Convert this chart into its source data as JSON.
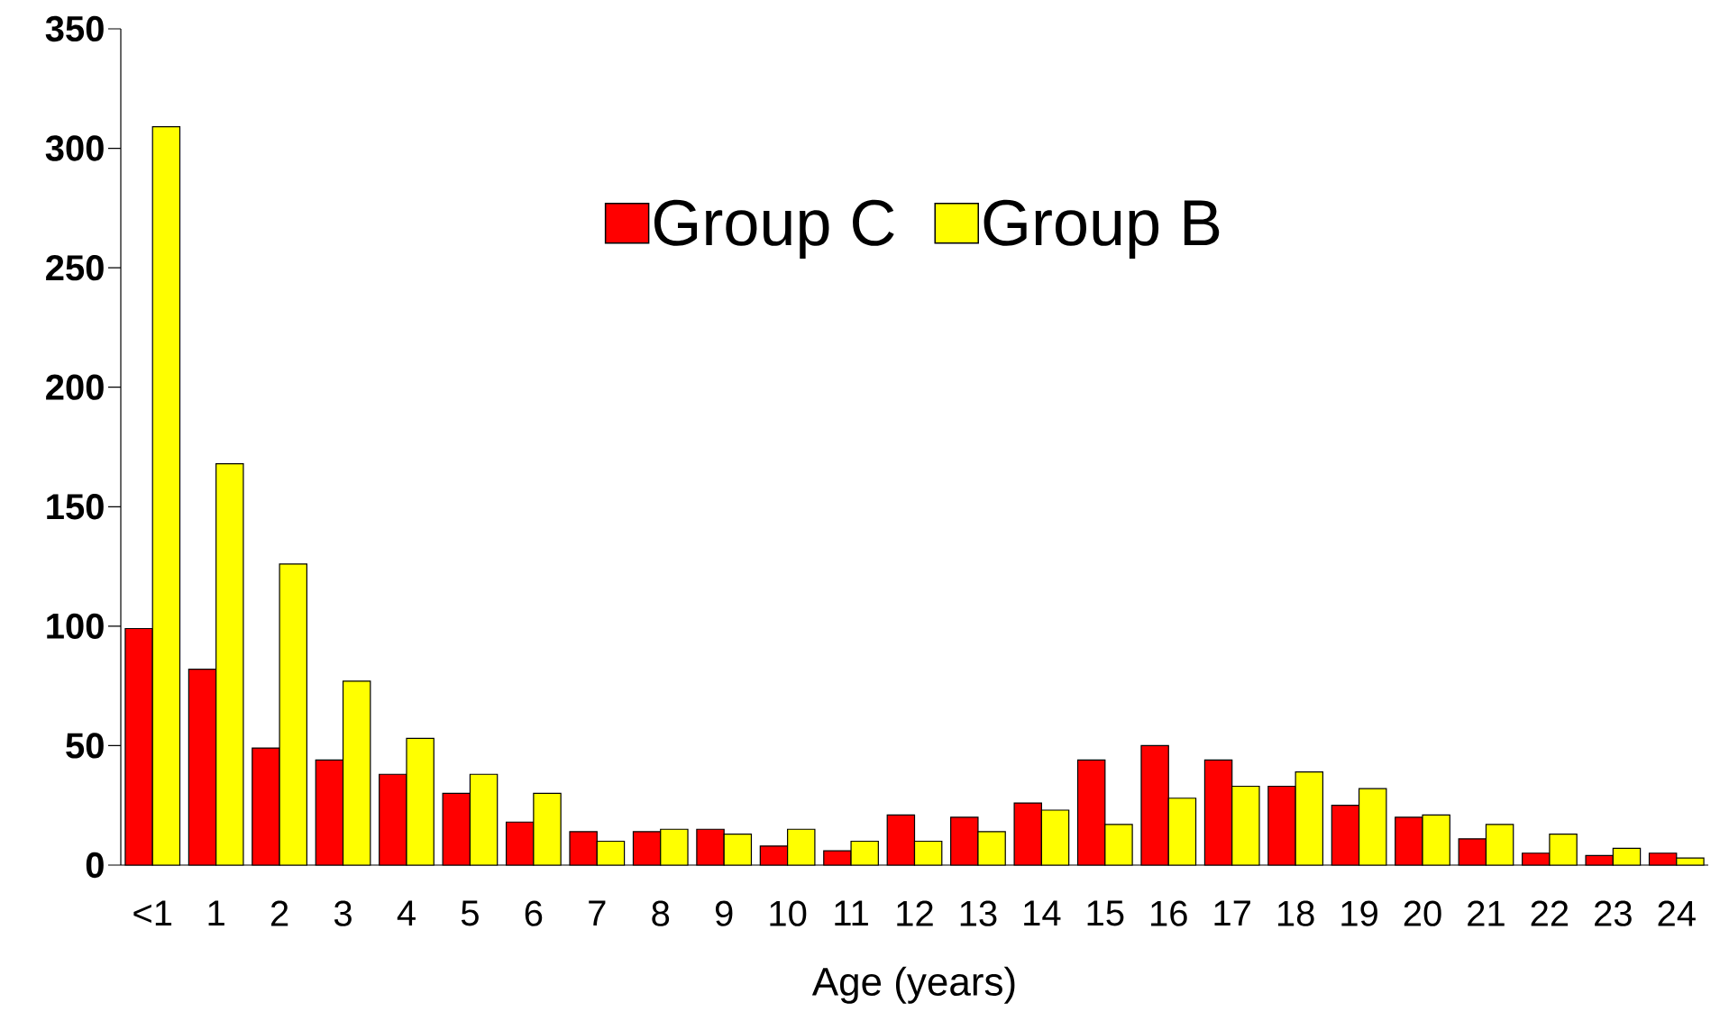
{
  "chart_data": {
    "type": "bar",
    "xlabel": "Age (years)",
    "categories": [
      "<1",
      "1",
      "2",
      "3",
      "4",
      "5",
      "6",
      "7",
      "8",
      "9",
      "10",
      "11",
      "12",
      "13",
      "14",
      "15",
      "16",
      "17",
      "18",
      "19",
      "20",
      "21",
      "22",
      "23",
      "24"
    ],
    "series": [
      {
        "name": "Group C",
        "color": "#ff0000",
        "values": [
          99,
          82,
          49,
          44,
          38,
          30,
          18,
          14,
          14,
          15,
          8,
          6,
          21,
          20,
          26,
          44,
          50,
          44,
          33,
          25,
          20,
          11,
          5,
          4,
          5
        ]
      },
      {
        "name": "Group B",
        "color": "#ffff00",
        "values": [
          309,
          168,
          126,
          77,
          53,
          38,
          30,
          10,
          15,
          13,
          15,
          10,
          10,
          14,
          23,
          17,
          28,
          33,
          39,
          32,
          21,
          17,
          13,
          7,
          3
        ]
      }
    ],
    "ylim": [
      0,
      350
    ],
    "yticks": [
      0,
      50,
      100,
      150,
      200,
      250,
      300,
      350
    ],
    "legend": "top"
  }
}
